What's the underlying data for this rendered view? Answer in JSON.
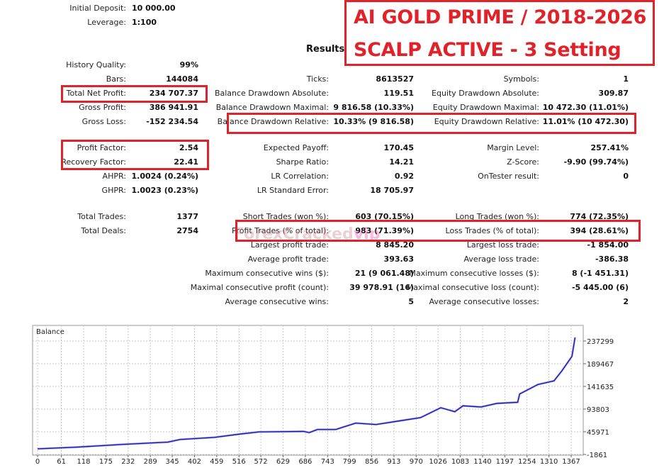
{
  "overlay": {
    "title_line1": "AI GOLD PRIME / 2018-2026",
    "title_line2": "SCALP ACTIVE - 3 Setting",
    "watermark": "ForexCracked",
    "watermark_suffix": "vip"
  },
  "header": {
    "initial_deposit_label": "Initial Deposit:",
    "initial_deposit": "10 000.00",
    "leverage_label": "Leverage:",
    "leverage": "1:100",
    "results_title": "Results"
  },
  "rows": [
    [
      [
        "History Quality:",
        "99%"
      ],
      null,
      null
    ],
    [
      [
        "Bars:",
        "144084"
      ],
      [
        "Ticks:",
        "8613527"
      ],
      [
        "Symbols:",
        "1"
      ]
    ],
    [
      [
        "Total Net Profit:",
        "234 707.37"
      ],
      [
        "Balance Drawdown Absolute:",
        "119.51"
      ],
      [
        "Equity Drawdown Absolute:",
        "309.87"
      ]
    ],
    [
      [
        "Gross Profit:",
        "386 941.91"
      ],
      [
        "Balance Drawdown Maximal:",
        "9 816.58 (10.33%)"
      ],
      [
        "Equity Drawdown Maximal:",
        "10 472.30 (11.01%)"
      ]
    ],
    [
      [
        "Gross Loss:",
        "-152 234.54"
      ],
      [
        "Balance Drawdown Relative:",
        "10.33% (9 816.58)"
      ],
      [
        "Equity Drawdown Relative:",
        "11.01% (10 472.30)"
      ]
    ],
    [
      [
        "Profit Factor:",
        "2.54"
      ],
      [
        "Expected Payoff:",
        "170.45"
      ],
      [
        "Margin Level:",
        "257.41%"
      ]
    ],
    [
      [
        "Recovery Factor:",
        "22.41"
      ],
      [
        "Sharpe Ratio:",
        "14.21"
      ],
      [
        "Z-Score:",
        "-9.90 (99.74%)"
      ]
    ],
    [
      [
        "AHPR:",
        "1.0024 (0.24%)"
      ],
      [
        "LR Correlation:",
        "0.92"
      ],
      [
        "OnTester result:",
        "0"
      ]
    ],
    [
      [
        "GHPR:",
        "1.0023 (0.23%)"
      ],
      [
        "LR Standard Error:",
        "18 705.97"
      ],
      null
    ],
    [
      [
        "Total Trades:",
        "1377"
      ],
      [
        "Short Trades (won %):",
        "603 (70.15%)"
      ],
      [
        "Long Trades (won %):",
        "774 (72.35%)"
      ]
    ],
    [
      [
        "Total Deals:",
        "2754"
      ],
      [
        "Profit Trades (% of total):",
        "983 (71.39%)"
      ],
      [
        "Loss Trades (% of total):",
        "394 (28.61%)"
      ]
    ],
    [
      null,
      [
        "Largest profit trade:",
        "8 845.20"
      ],
      [
        "Largest loss trade:",
        "-1 854.00"
      ]
    ],
    [
      null,
      [
        "Average profit trade:",
        "393.63"
      ],
      [
        "Average loss trade:",
        "-386.38"
      ]
    ],
    [
      null,
      [
        "Maximum consecutive wins ($):",
        "21 (9 061.48)"
      ],
      [
        "Maximum consecutive losses ($):",
        "8 (-1 451.31)"
      ]
    ],
    [
      null,
      [
        "Maximal consecutive profit (count):",
        "39 978.91 (16)"
      ],
      [
        "Maximal consecutive loss (count):",
        "-5 445.00 (6)"
      ]
    ],
    [
      null,
      [
        "Average consecutive wins:",
        "5"
      ],
      [
        "Average consecutive losses:",
        "2"
      ]
    ]
  ],
  "colors": {
    "highlight": "#e0222a",
    "balance_line": "#1a1aa8",
    "grid": "#c8c8c8"
  },
  "chart_data": {
    "type": "line",
    "title": "Balance",
    "x_ticks": [
      0,
      61,
      118,
      175,
      232,
      289,
      345,
      402,
      459,
      516,
      572,
      629,
      686,
      743,
      799,
      856,
      913,
      970,
      1026,
      1083,
      1140,
      1197,
      1254,
      1310,
      1367
    ],
    "y_ticks": [
      -1861,
      45971,
      93803,
      141635,
      189467,
      237299
    ],
    "ylim": [
      -1861,
      237299
    ],
    "grid": true,
    "series": [
      {
        "x": [
          0,
          100,
          215,
          334,
          365,
          453,
          515,
          567,
          681,
          696,
          717,
          764,
          815,
          867,
          929,
          981,
          1033,
          1069,
          1090,
          1136,
          1177,
          1230,
          1235,
          1282,
          1323,
          1343,
          1369,
          1377
        ],
        "y": [
          10000,
          13500,
          19150,
          24150,
          29660,
          34160,
          40670,
          45670,
          46670,
          44170,
          50680,
          50680,
          64190,
          61180,
          69190,
          75690,
          96700,
          88200,
          100700,
          98200,
          105700,
          108200,
          125700,
          145730,
          153240,
          174250,
          205000,
          244707
        ]
      }
    ]
  }
}
